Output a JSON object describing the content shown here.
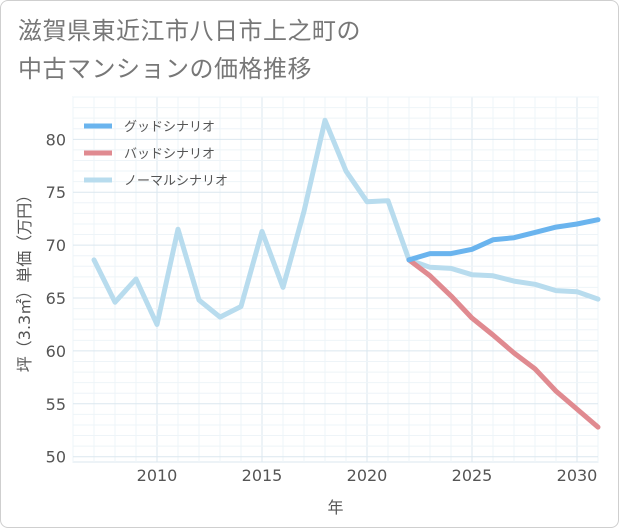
{
  "title_lines": [
    "滋賀県東近江市八日市上之町の",
    "中古マンションの価格推移"
  ],
  "chart_data": {
    "type": "line",
    "title": "滋賀県東近江市八日市上之町の中古マンションの価格推移",
    "xlabel": "年",
    "ylabel": "坪（3.3㎡）単価（万円）",
    "xlim": [
      2006,
      2031
    ],
    "ylim": [
      49.5,
      84
    ],
    "xticks": [
      2010,
      2015,
      2020,
      2025,
      2030
    ],
    "yticks": [
      50,
      55,
      60,
      65,
      70,
      75,
      80
    ],
    "legend_position": "top-left",
    "series": [
      {
        "name": "グッドシナリオ",
        "color": "#6ab4ee",
        "x": [
          2022,
          2023,
          2024,
          2025,
          2026,
          2027,
          2028,
          2029,
          2030,
          2031
        ],
        "values": [
          68.6,
          69.2,
          69.2,
          69.6,
          70.5,
          70.7,
          71.2,
          71.7,
          72.0,
          72.4
        ]
      },
      {
        "name": "バッドシナリオ",
        "color": "#e08a90",
        "x": [
          2022,
          2023,
          2024,
          2025,
          2026,
          2027,
          2028,
          2029,
          2030,
          2031
        ],
        "values": [
          68.6,
          67.1,
          65.2,
          63.1,
          61.5,
          59.8,
          58.3,
          56.2,
          54.5,
          52.8
        ]
      },
      {
        "name": "ノーマルシナリオ",
        "color": "#b8dcee",
        "x": [
          2007,
          2008,
          2009,
          2010,
          2011,
          2012,
          2013,
          2014,
          2015,
          2016,
          2017,
          2018,
          2019,
          2020,
          2021,
          2022,
          2023,
          2024,
          2025,
          2026,
          2027,
          2028,
          2029,
          2030,
          2031
        ],
        "values": [
          68.6,
          64.6,
          66.8,
          62.5,
          71.5,
          64.8,
          63.2,
          64.2,
          71.3,
          66.0,
          73.2,
          81.8,
          77.0,
          74.1,
          74.2,
          68.6,
          67.9,
          67.8,
          67.2,
          67.1,
          66.6,
          66.3,
          65.7,
          65.6,
          64.9
        ]
      }
    ]
  }
}
